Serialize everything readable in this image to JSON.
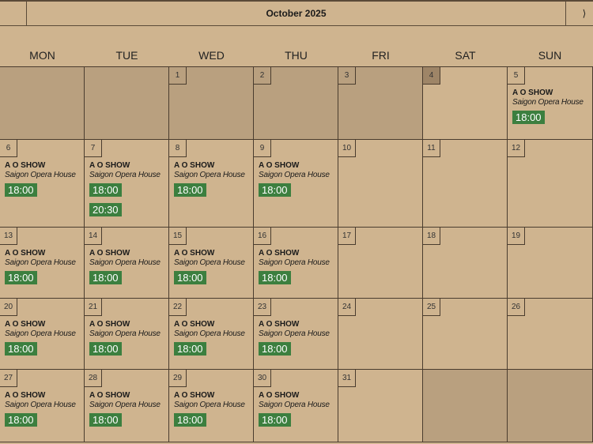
{
  "header": {
    "title": "October 2025",
    "next_icon": "chevron-right-icon",
    "next_label": "⟩"
  },
  "weekdays": [
    "MON",
    "TUE",
    "WED",
    "THU",
    "FRI",
    "SAT",
    "SUN"
  ],
  "colors": {
    "time_button": "#3c7f3f",
    "shaded": "#b9a07f",
    "background": "#cfb48f"
  },
  "event": {
    "title": "A O SHOW",
    "venue": "Saigon Opera House"
  },
  "weeks": [
    [
      {
        "n": "",
        "s": 1
      },
      {
        "n": "",
        "s": 1
      },
      {
        "n": "1",
        "s": 1
      },
      {
        "n": "2",
        "s": 1
      },
      {
        "n": "3",
        "s": 1
      },
      {
        "n": "4",
        "today": 1
      },
      {
        "n": "5",
        "times": [
          "18:00"
        ]
      }
    ],
    [
      {
        "n": "6",
        "times": [
          "18:00"
        ]
      },
      {
        "n": "7",
        "times": [
          "18:00",
          "20:30"
        ]
      },
      {
        "n": "8",
        "times": [
          "18:00"
        ]
      },
      {
        "n": "9",
        "times": [
          "18:00"
        ]
      },
      {
        "n": "10"
      },
      {
        "n": "11"
      },
      {
        "n": "12"
      }
    ],
    [
      {
        "n": "13",
        "times": [
          "18:00"
        ]
      },
      {
        "n": "14",
        "times": [
          "18:00"
        ]
      },
      {
        "n": "15",
        "times": [
          "18:00"
        ]
      },
      {
        "n": "16",
        "times": [
          "18:00"
        ]
      },
      {
        "n": "17"
      },
      {
        "n": "18"
      },
      {
        "n": "19"
      }
    ],
    [
      {
        "n": "20",
        "times": [
          "18:00"
        ]
      },
      {
        "n": "21",
        "times": [
          "18:00"
        ]
      },
      {
        "n": "22",
        "times": [
          "18:00"
        ]
      },
      {
        "n": "23",
        "times": [
          "18:00"
        ]
      },
      {
        "n": "24"
      },
      {
        "n": "25"
      },
      {
        "n": "26"
      }
    ],
    [
      {
        "n": "27",
        "times": [
          "18:00"
        ]
      },
      {
        "n": "28",
        "times": [
          "18:00"
        ]
      },
      {
        "n": "29",
        "times": [
          "18:00"
        ]
      },
      {
        "n": "30",
        "times": [
          "18:00"
        ]
      },
      {
        "n": "31"
      },
      {
        "n": "",
        "s": 1
      },
      {
        "n": "",
        "s": 1
      }
    ]
  ]
}
